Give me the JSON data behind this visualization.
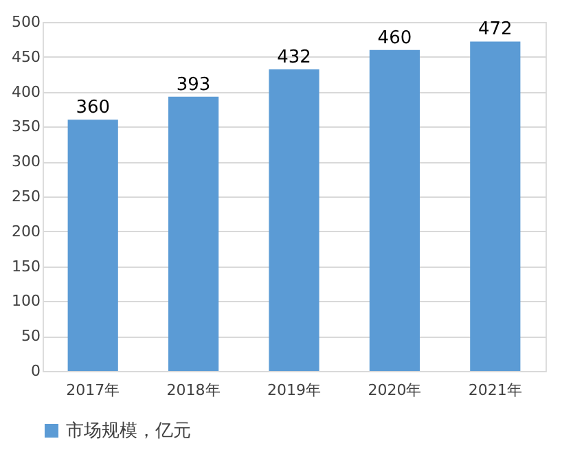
{
  "chart_data": {
    "type": "bar",
    "categories": [
      "2017年",
      "2018年",
      "2019年",
      "2020年",
      "2021年"
    ],
    "series": [
      {
        "name": "市场规模，亿元",
        "color": "#5b9bd5",
        "values": [
          360,
          393,
          432,
          460,
          472
        ]
      }
    ],
    "ylim": [
      0,
      500
    ],
    "yticks": [
      0,
      50,
      100,
      150,
      200,
      250,
      300,
      350,
      400,
      450,
      500
    ],
    "grid": "y",
    "legend": "bottom",
    "data_labels": true
  }
}
